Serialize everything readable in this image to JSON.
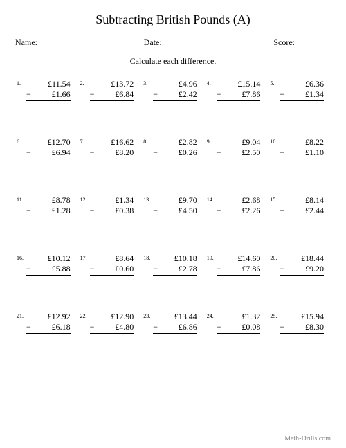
{
  "title": "Subtracting British Pounds (A)",
  "header": {
    "name_label": "Name:",
    "date_label": "Date:",
    "score_label": "Score:"
  },
  "instruction": "Calculate each difference.",
  "currency": "£",
  "minus": "−",
  "footer": "Math-Drills.com",
  "problems": [
    {
      "n": "1.",
      "a": "£11.54",
      "b": "£1.66"
    },
    {
      "n": "2.",
      "a": "£13.72",
      "b": "£6.84"
    },
    {
      "n": "3.",
      "a": "£4.96",
      "b": "£2.42"
    },
    {
      "n": "4.",
      "a": "£15.14",
      "b": "£7.86"
    },
    {
      "n": "5.",
      "a": "£6.36",
      "b": "£1.34"
    },
    {
      "n": "6.",
      "a": "£12.70",
      "b": "£6.94"
    },
    {
      "n": "7.",
      "a": "£16.62",
      "b": "£8.20"
    },
    {
      "n": "8.",
      "a": "£2.82",
      "b": "£0.26"
    },
    {
      "n": "9.",
      "a": "£9.04",
      "b": "£2.50"
    },
    {
      "n": "10.",
      "a": "£8.22",
      "b": "£1.10"
    },
    {
      "n": "11.",
      "a": "£8.78",
      "b": "£1.28"
    },
    {
      "n": "12.",
      "a": "£1.34",
      "b": "£0.38"
    },
    {
      "n": "13.",
      "a": "£9.70",
      "b": "£4.50"
    },
    {
      "n": "14.",
      "a": "£2.68",
      "b": "£2.26"
    },
    {
      "n": "15.",
      "a": "£8.14",
      "b": "£2.44"
    },
    {
      "n": "16.",
      "a": "£10.12",
      "b": "£5.88"
    },
    {
      "n": "17.",
      "a": "£8.64",
      "b": "£0.60"
    },
    {
      "n": "18.",
      "a": "£10.18",
      "b": "£2.78"
    },
    {
      "n": "19.",
      "a": "£14.60",
      "b": "£7.86"
    },
    {
      "n": "20.",
      "a": "£18.44",
      "b": "£9.20"
    },
    {
      "n": "21.",
      "a": "£12.92",
      "b": "£6.18"
    },
    {
      "n": "22.",
      "a": "£12.90",
      "b": "£4.80"
    },
    {
      "n": "23.",
      "a": "£13.44",
      "b": "£6.86"
    },
    {
      "n": "24.",
      "a": "£1.32",
      "b": "£0.08"
    },
    {
      "n": "25.",
      "a": "£15.94",
      "b": "£8.30"
    }
  ],
  "styling": {
    "page_bg": "#ffffff",
    "text_color": "#000000",
    "footer_color": "#888888",
    "title_fontsize": 18,
    "body_fontsize": 12,
    "num_fontsize": 8,
    "footer_fontsize": 10,
    "cols": 5,
    "rows": 5
  }
}
